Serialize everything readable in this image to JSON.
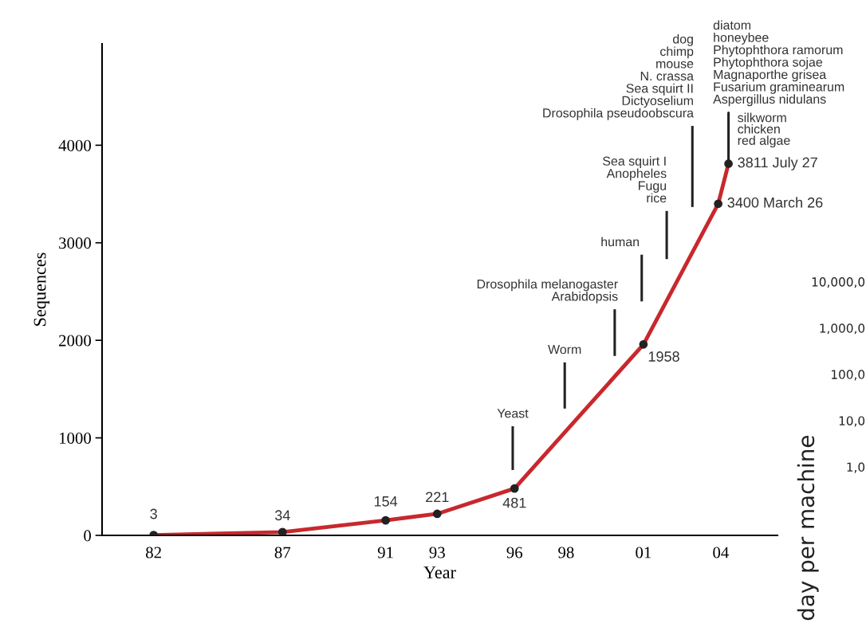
{
  "chart_data": [
    {
      "type": "line",
      "xlabel": "Year",
      "ylabel": "Sequences",
      "x": [
        1982,
        1987,
        1991,
        1993,
        1996,
        2001,
        2003.9,
        2004.3
      ],
      "series": [
        {
          "color": "#c8282d",
          "values": [
            3,
            34,
            154,
            221,
            481,
            1958,
            3400,
            3811
          ],
          "value_labels": [
            "3",
            "34",
            "154",
            "221",
            "481",
            "1958",
            "3400 March 26",
            "3811 July 27"
          ]
        }
      ],
      "marker": "circle",
      "line_style": "solid",
      "grid": false,
      "legend": false,
      "xlim": [
        1980,
        2006.2
      ],
      "ylim": [
        0,
        5040
      ],
      "xticks": [
        {
          "value": 1982,
          "label": "82"
        },
        {
          "value": 1987,
          "label": "87"
        },
        {
          "value": 1991,
          "label": "91"
        },
        {
          "value": 1993,
          "label": "93"
        },
        {
          "value": 1996,
          "label": "96"
        },
        {
          "value": 1998,
          "label": "98"
        },
        {
          "value": 2001,
          "label": "01"
        },
        {
          "value": 2004,
          "label": "04"
        }
      ],
      "yticks": [
        0,
        1000,
        2000,
        3000,
        4000
      ],
      "annotations": [
        "Yeast",
        "Worm",
        "Drosophila melanogaster\nArabidopsis",
        "human",
        "Sea squirt I\nAnopheles\nFugu\nrice",
        "dog\nchimp\nmouse\nN. crassa\nSea squirt II\nDictyoselium\nDrosophila pseudoobscura",
        {
          "text": "diatom\nhoneybee\nPhytophthora ramorum\nPhytophthora sojae\nMagnaporthe grisea\nFusarium graminearum\nAspergillus nidulans",
          "x": 2004.3,
          "y": 3811
        },
        {
          "text": "silkworm\nchicken\nred algae",
          "x": 2004.3,
          "y": 3811
        }
      ]
    },
    {
      "type": "other",
      "ylabel": "day per machine",
      "annotations": [
        "10,000,0",
        "1,000,0",
        "100,0",
        "10,0",
        "1,0"
      ]
    }
  ]
}
